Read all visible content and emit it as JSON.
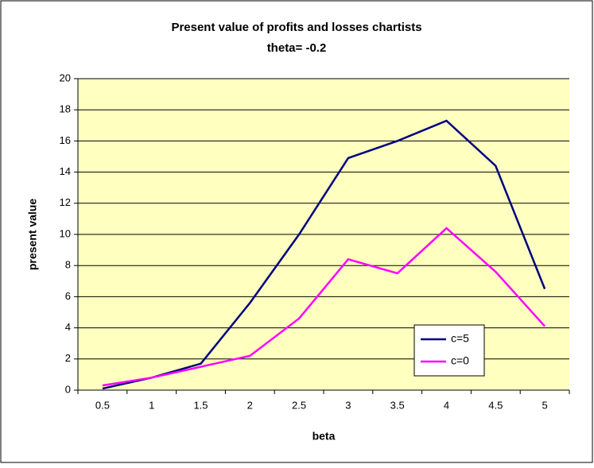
{
  "chart_data": {
    "type": "line",
    "title": "Present value of profits and losses chartists",
    "subtitle": "theta= -0.2",
    "x_label": "beta",
    "y_label": "present value",
    "categories": [
      "0.5",
      "1",
      "1.5",
      "2",
      "2.5",
      "3",
      "3.5",
      "4",
      "4.5",
      "5"
    ],
    "series": [
      {
        "name": "c=5",
        "color": "#000080",
        "values": [
          0.1,
          0.8,
          1.7,
          5.6,
          10,
          14.9,
          16.0,
          17.3,
          14.4,
          6.5
        ]
      },
      {
        "name": "c=0",
        "color": "#ff00ff",
        "values": [
          0.3,
          0.8,
          1.5,
          2.2,
          4.6,
          8.4,
          7.5,
          10.4,
          7.6,
          4.1
        ]
      }
    ],
    "ylim": [
      0,
      20
    ],
    "yticks": [
      0,
      2,
      4,
      6,
      8,
      10,
      12,
      14,
      16,
      18,
      20
    ],
    "grid": true,
    "background": "#ffffc0",
    "legend": "lower-right"
  }
}
